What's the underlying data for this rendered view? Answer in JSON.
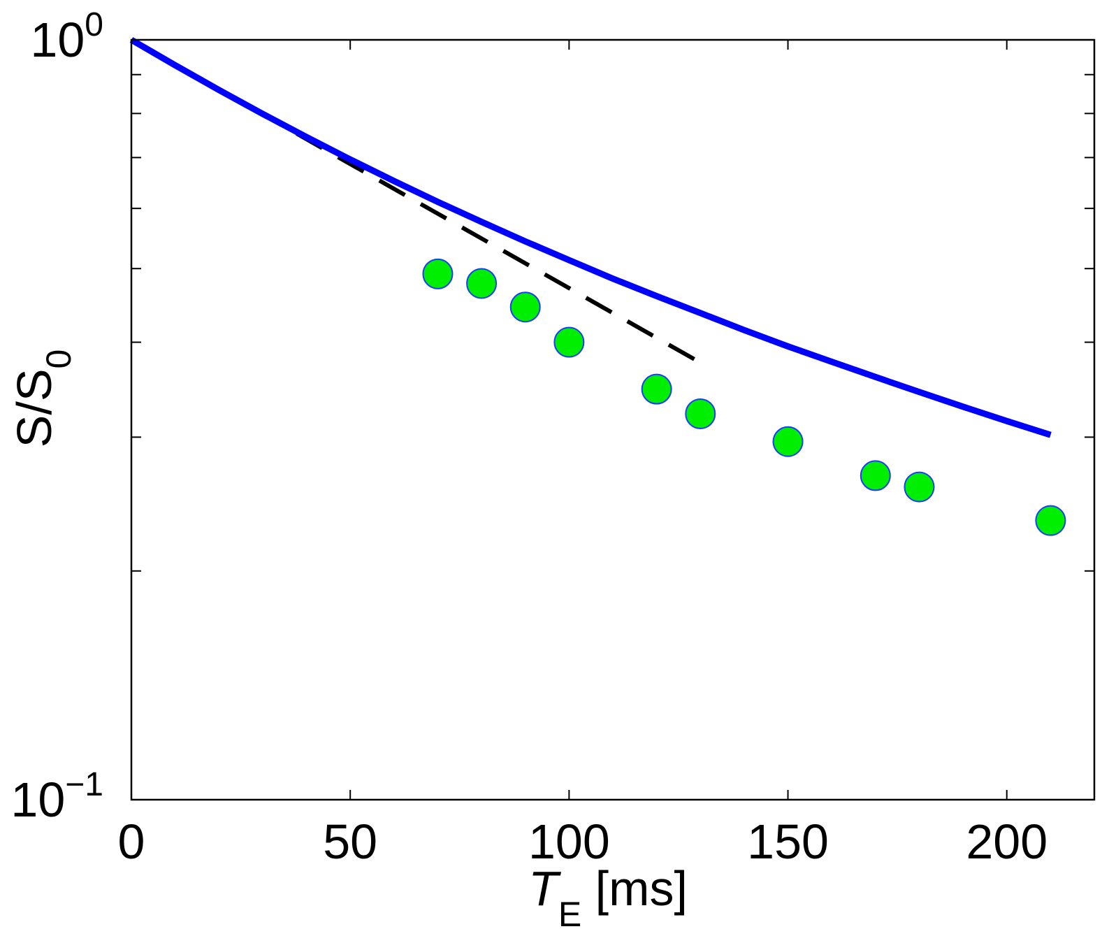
{
  "chart_data": {
    "type": "scatter",
    "title": "",
    "xlabel": {
      "main": "T",
      "sub": "E",
      "suffix": " [ms]"
    },
    "ylabel": {
      "main": "S/S",
      "sub": "0"
    },
    "xlim": [
      0,
      220
    ],
    "ylim": [
      0.1,
      1.0
    ],
    "yscale": "log",
    "grid": false,
    "legend": "none",
    "xticks": [
      {
        "value": 0,
        "label": "0"
      },
      {
        "value": 50,
        "label": "50"
      },
      {
        "value": 100,
        "label": "100"
      },
      {
        "value": 150,
        "label": "150"
      },
      {
        "value": 200,
        "label": "200"
      }
    ],
    "yticks": [
      {
        "value": 0.1,
        "base": "10",
        "exp": "−1"
      },
      {
        "value": 1.0,
        "base": "10",
        "exp": "0"
      }
    ],
    "series": [
      {
        "kind": "markers",
        "color": "#00ee00",
        "edge_color": "#1a3cff",
        "points": [
          [
            70,
            0.492
          ],
          [
            80,
            0.478
          ],
          [
            90,
            0.445
          ],
          [
            100,
            0.4
          ],
          [
            120,
            0.347
          ],
          [
            130,
            0.322
          ],
          [
            150,
            0.296
          ],
          [
            170,
            0.267
          ],
          [
            180,
            0.258
          ],
          [
            210,
            0.233
          ]
        ]
      },
      {
        "kind": "line",
        "style": "solid",
        "color": "#0000ff",
        "points": [
          [
            0,
            1.0
          ],
          [
            10,
            0.926
          ],
          [
            20,
            0.859
          ],
          [
            30,
            0.799
          ],
          [
            40,
            0.745
          ],
          [
            50,
            0.696
          ],
          [
            60,
            0.652
          ],
          [
            70,
            0.612
          ],
          [
            80,
            0.576
          ],
          [
            90,
            0.543
          ],
          [
            100,
            0.513
          ],
          [
            110,
            0.485
          ],
          [
            120,
            0.46
          ],
          [
            130,
            0.437
          ],
          [
            140,
            0.415
          ],
          [
            150,
            0.395
          ],
          [
            160,
            0.377
          ],
          [
            170,
            0.36
          ],
          [
            180,
            0.344
          ],
          [
            190,
            0.329
          ],
          [
            200,
            0.315
          ],
          [
            210,
            0.302
          ]
        ]
      },
      {
        "kind": "line",
        "style": "dashed",
        "color": "#000000",
        "points": [
          [
            0,
            1.0
          ],
          [
            130,
            0.376
          ]
        ]
      }
    ]
  }
}
